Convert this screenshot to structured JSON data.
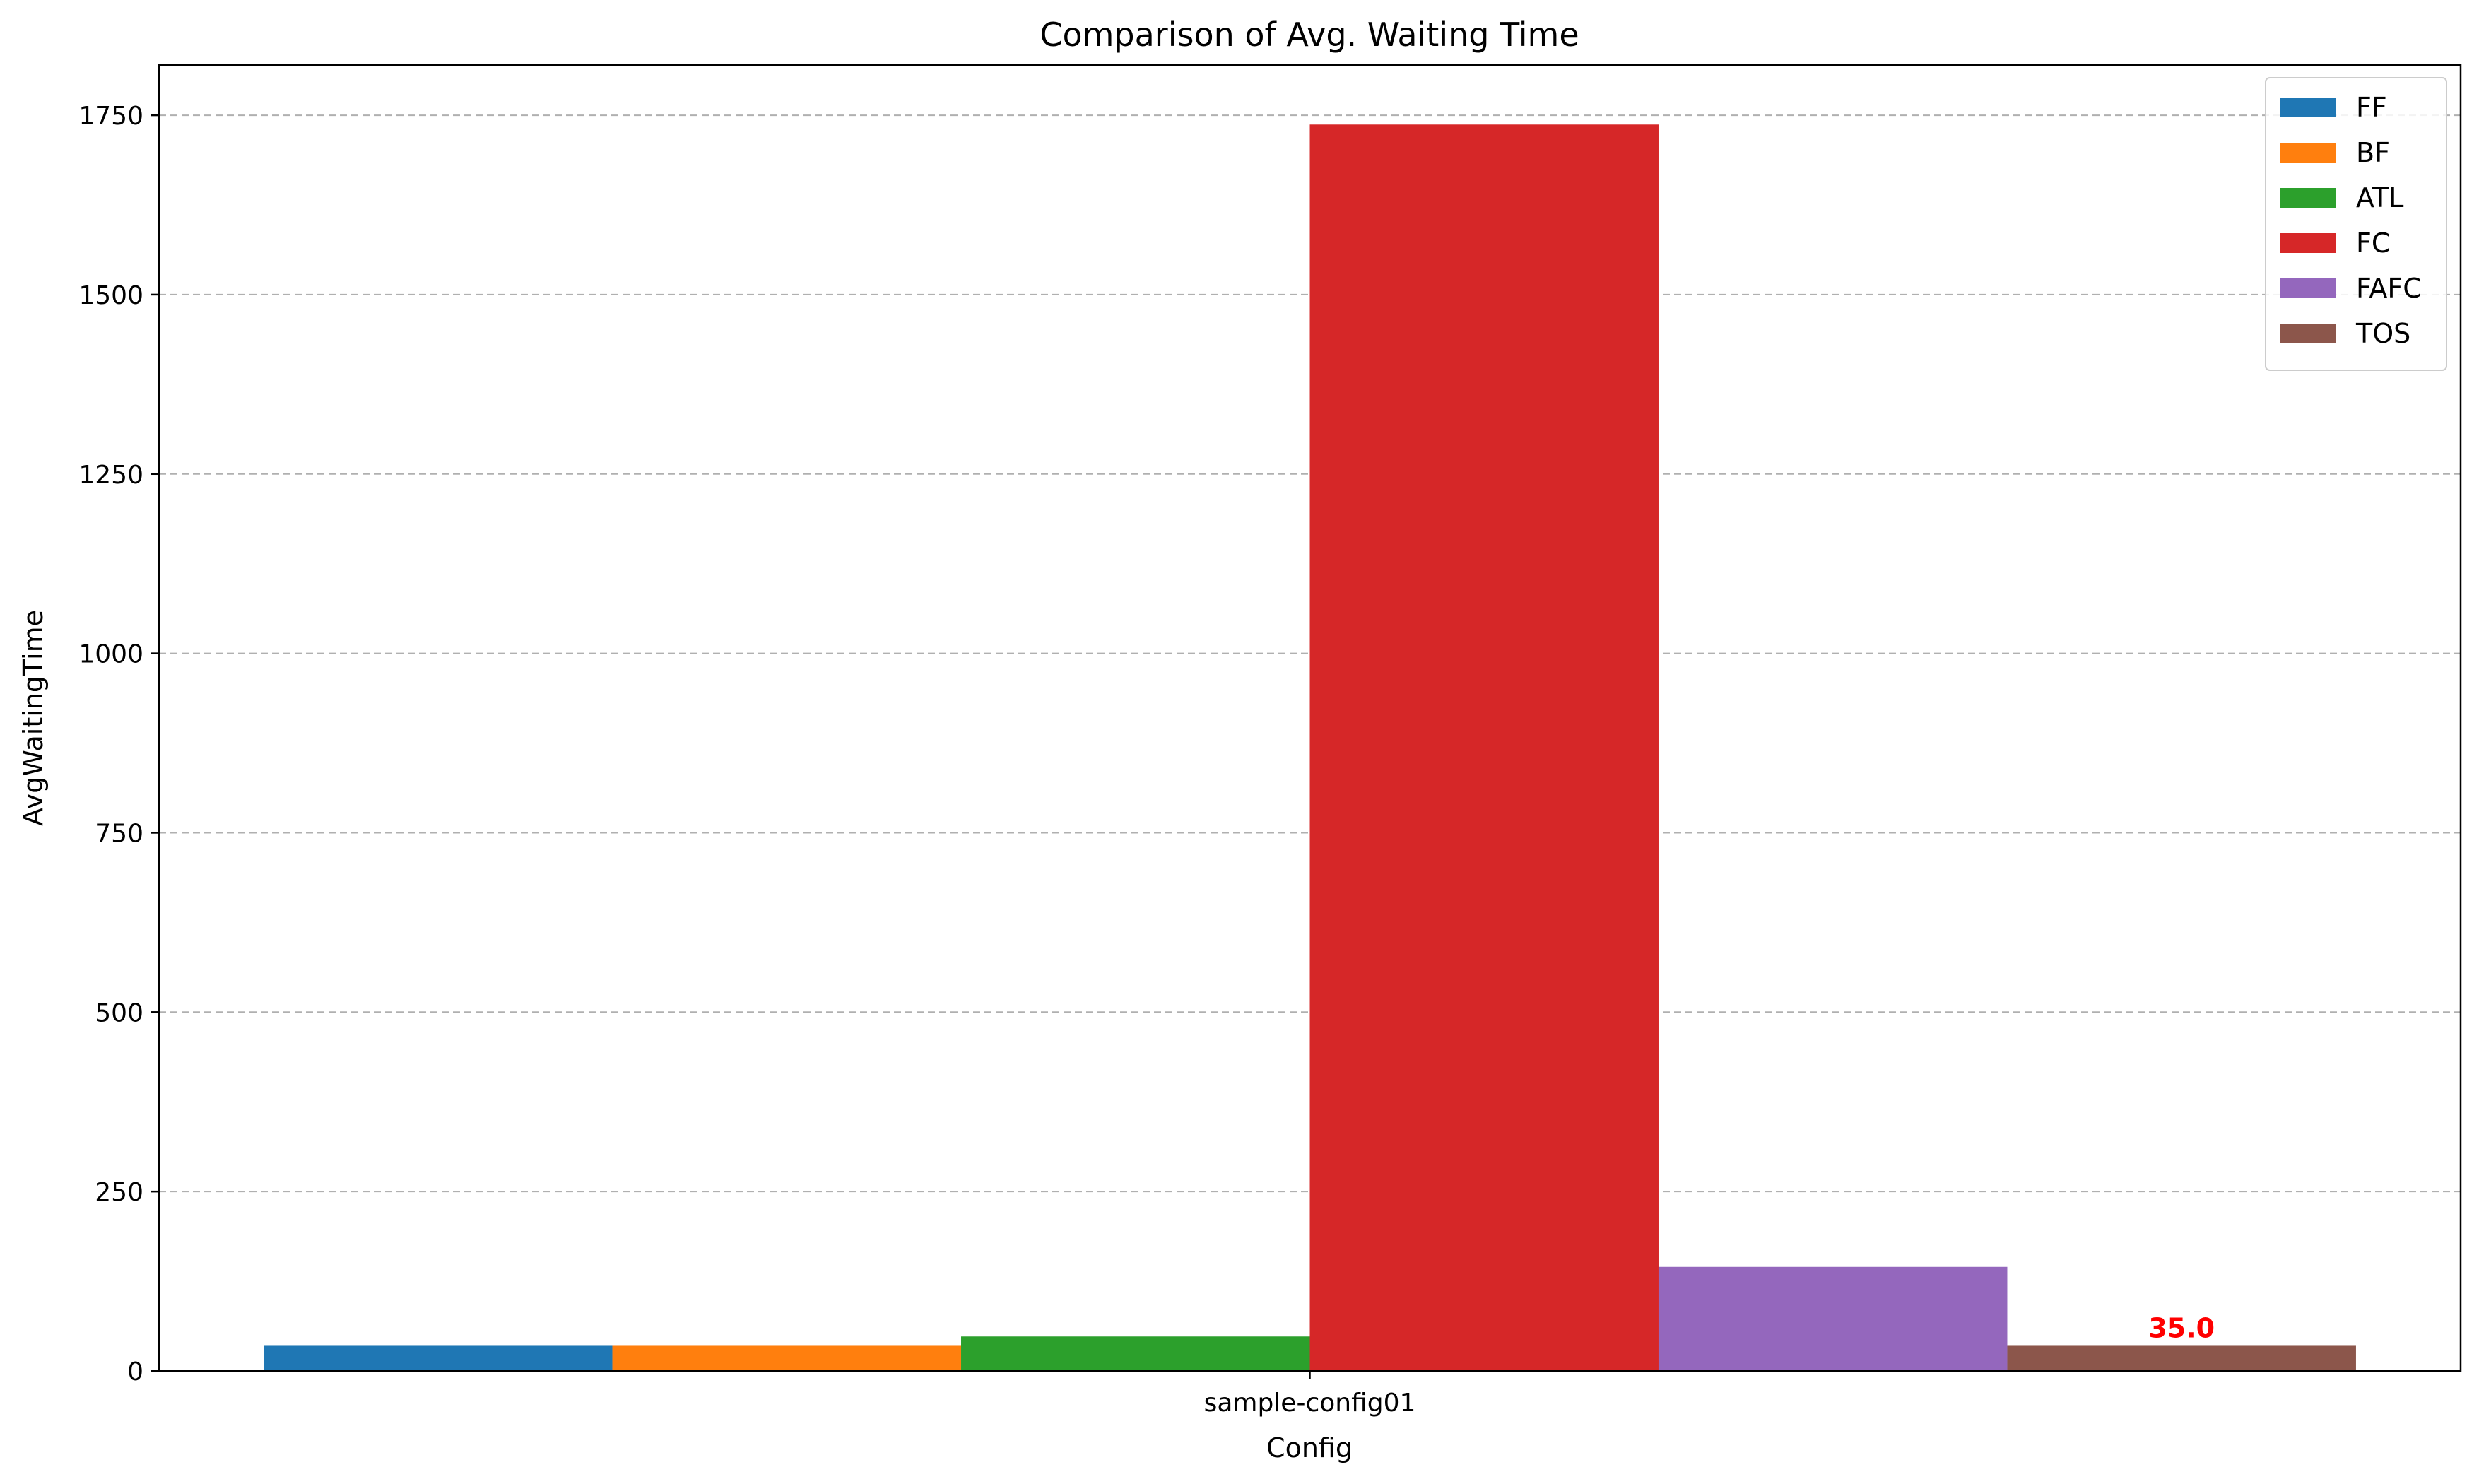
{
  "chart_data": {
    "type": "bar",
    "title": "Comparison of Avg. Waiting Time",
    "xlabel": "Config",
    "ylabel": "AvgWaitingTime",
    "categories": [
      "sample-config01"
    ],
    "series": [
      {
        "name": "FF",
        "values": [
          35
        ],
        "color": "#1f77b4"
      },
      {
        "name": "BF",
        "values": [
          35
        ],
        "color": "#ff7f0e"
      },
      {
        "name": "ATL",
        "values": [
          48
        ],
        "color": "#2ca02c"
      },
      {
        "name": "FC",
        "values": [
          1737
        ],
        "color": "#d62728"
      },
      {
        "name": "FAFC",
        "values": [
          145
        ],
        "color": "#9467bd"
      },
      {
        "name": "TOS",
        "values": [
          35
        ],
        "color": "#8c564b"
      }
    ],
    "ylim": [
      0,
      1820
    ],
    "yticks": [
      0,
      250,
      500,
      750,
      1000,
      1250,
      1500,
      1750
    ],
    "grid": "y-dashed",
    "legend": "top-right",
    "annotations": [
      {
        "series": "TOS",
        "category": "sample-config01",
        "text": "35.0",
        "color": "#ff0000"
      }
    ]
  }
}
